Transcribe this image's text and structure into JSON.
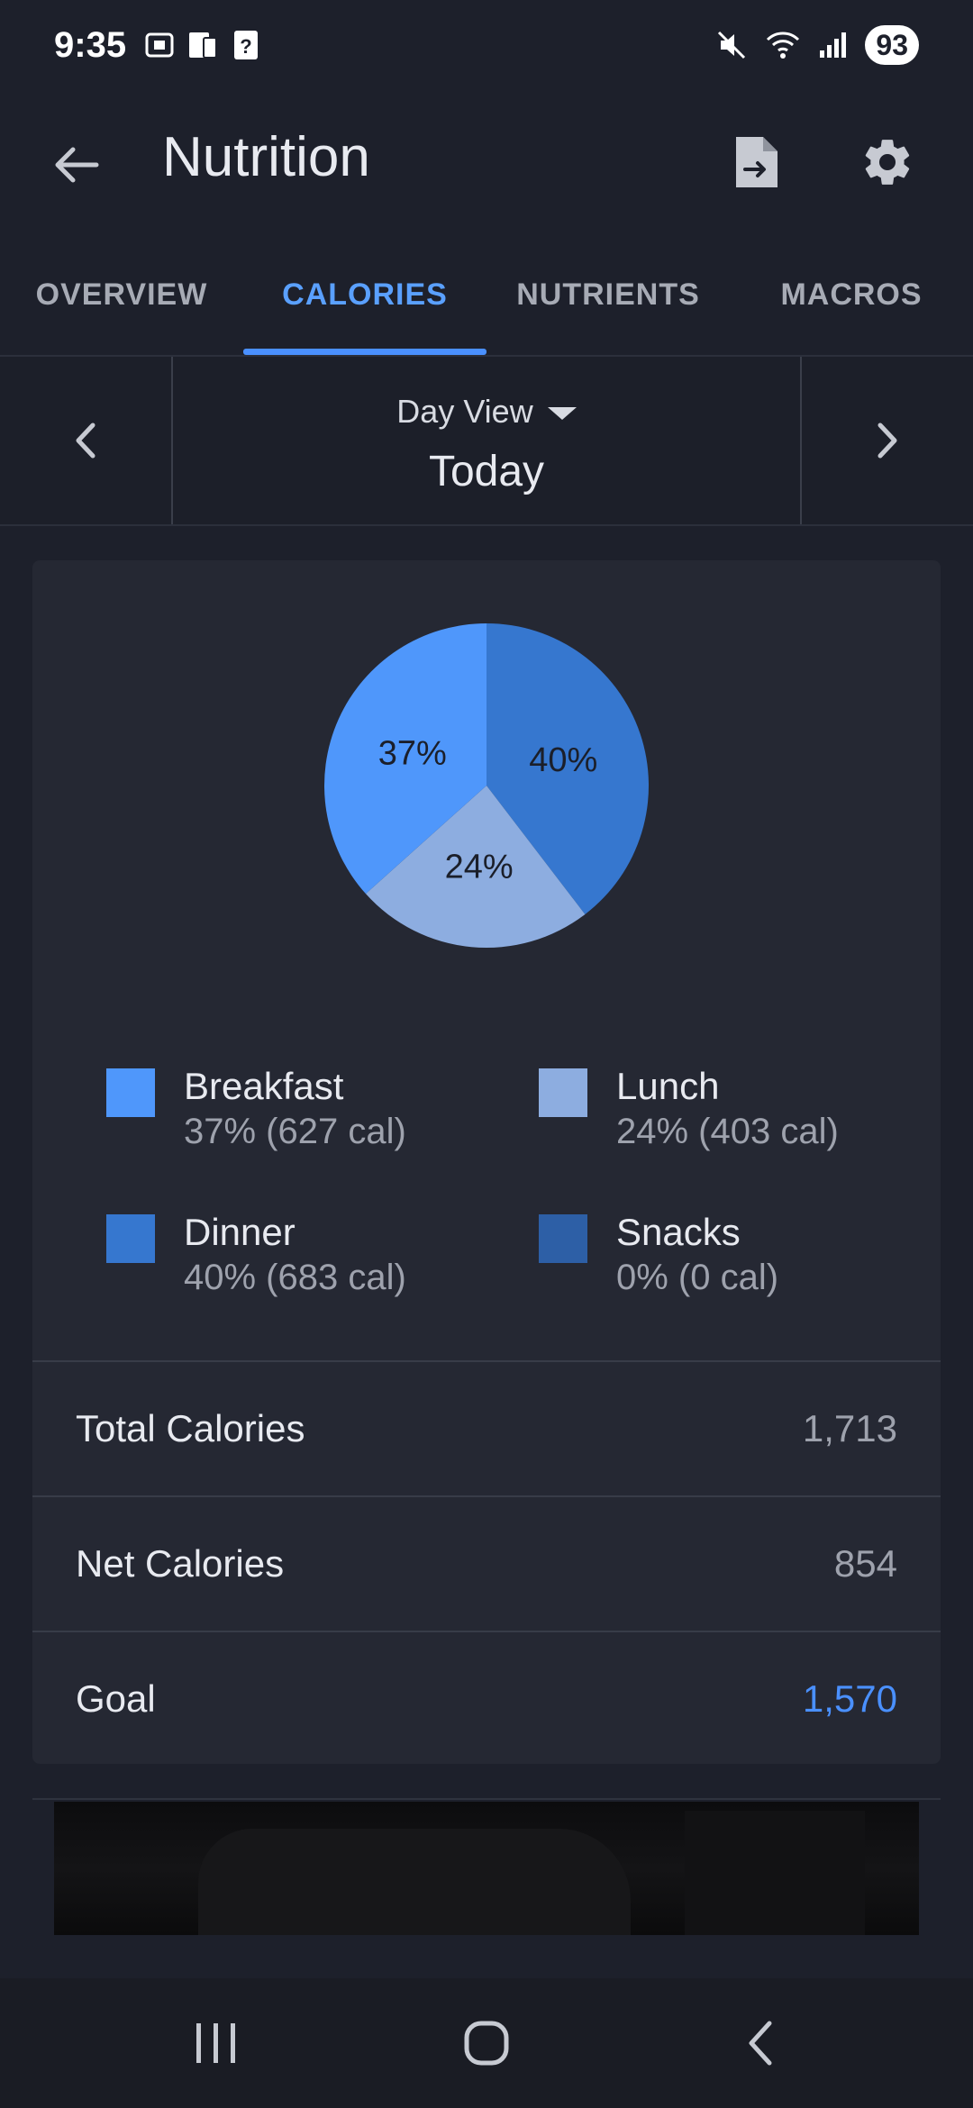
{
  "status_bar": {
    "time": "9:35",
    "battery": "93",
    "left_icons": [
      "screenshot-icon",
      "device-icon",
      "unknown-icon"
    ],
    "right_icons": [
      "mute-icon",
      "wifi-icon",
      "signal-icon"
    ]
  },
  "app_bar": {
    "title": "Nutrition",
    "icons": [
      "back-arrow-icon",
      "export-file-icon",
      "gear-icon"
    ]
  },
  "tabs": [
    {
      "label": "OVERVIEW",
      "active": false
    },
    {
      "label": "CALORIES",
      "active": true
    },
    {
      "label": "NUTRIENTS",
      "active": false
    },
    {
      "label": "MACROS",
      "active": false
    }
  ],
  "date_nav": {
    "view_label": "Day View",
    "period": "Today"
  },
  "chart_data": {
    "type": "pie",
    "series": [
      {
        "name": "Breakfast",
        "value": 37,
        "label": "37%",
        "color": "#4f97fb"
      },
      {
        "name": "Lunch",
        "value": 24,
        "label": "24%",
        "color": "#8dade0"
      },
      {
        "name": "Dinner",
        "value": 40,
        "label": "40%",
        "color": "#3677cf"
      },
      {
        "name": "Snacks",
        "value": 0,
        "label": "0%",
        "color": "#2d5fa6"
      }
    ]
  },
  "legend": [
    {
      "name": "Breakfast",
      "detail": "37% (627 cal)",
      "color": "#4f97fb"
    },
    {
      "name": "Lunch",
      "detail": "24% (403 cal)",
      "color": "#8dade0"
    },
    {
      "name": "Dinner",
      "detail": "40% (683 cal)",
      "color": "#3677cf"
    },
    {
      "name": "Snacks",
      "detail": "0% (0 cal)",
      "color": "#2d5fa6"
    }
  ],
  "summary": {
    "total_label": "Total Calories",
    "total_value": "1,713",
    "net_label": "Net Calories",
    "net_value": "854",
    "goal_label": "Goal",
    "goal_value": "1,570"
  },
  "colors": {
    "accent": "#4a90ff",
    "background": "#1d202b",
    "card": "#252833"
  },
  "system_nav": {
    "icons": [
      "recents-icon",
      "home-icon",
      "back-icon"
    ]
  }
}
